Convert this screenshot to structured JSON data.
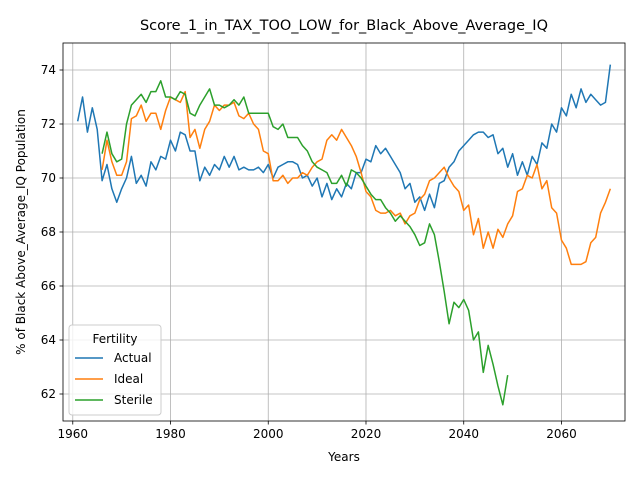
{
  "chart_data": {
    "type": "line",
    "title": "Score_1_in_TAX_TOO_LOW_for_Black_Above_Average_IQ",
    "xlabel": "Years",
    "ylabel": "% of Black Above_Average_IQ Population",
    "xlim": [
      1958,
      2073
    ],
    "ylim": [
      61.0,
      75.0
    ],
    "xticks": [
      1960,
      1980,
      2000,
      2020,
      2040,
      2060
    ],
    "yticks": [
      62,
      64,
      66,
      68,
      70,
      72,
      74
    ],
    "grid": true,
    "legend": {
      "title": "Fertility",
      "placement": "lower-left"
    },
    "series": [
      {
        "name": "Actual",
        "color": "#1f77b4",
        "x": [
          1961,
          1962,
          1963,
          1964,
          1965,
          1966,
          1967,
          1968,
          1969,
          1970,
          1971,
          1972,
          1973,
          1974,
          1975,
          1976,
          1977,
          1978,
          1979,
          1980,
          1981,
          1982,
          1983,
          1984,
          1985,
          1986,
          1987,
          1988,
          1989,
          1990,
          1991,
          1992,
          1993,
          1994,
          1995,
          1996,
          1997,
          1998,
          1999,
          2000,
          2001,
          2002,
          2003,
          2004,
          2005,
          2006,
          2007,
          2008,
          2009,
          2010,
          2011,
          2012,
          2013,
          2014,
          2015,
          2016,
          2017,
          2018,
          2019,
          2020,
          2021,
          2022,
          2023,
          2024,
          2025,
          2026,
          2027,
          2028,
          2029,
          2030,
          2031,
          2032,
          2033,
          2034,
          2035,
          2036,
          2037,
          2038,
          2039,
          2040,
          2041,
          2042,
          2043,
          2044,
          2045,
          2046,
          2047,
          2048,
          2049,
          2050,
          2051,
          2052,
          2053,
          2054,
          2055,
          2056,
          2057,
          2058,
          2059,
          2060,
          2061,
          2062,
          2063,
          2064,
          2065,
          2066,
          2067,
          2068,
          2069,
          2070
        ],
        "values": [
          72.1,
          73.0,
          71.7,
          72.6,
          71.8,
          69.9,
          70.5,
          69.6,
          69.1,
          69.6,
          70.0,
          70.8,
          69.8,
          70.1,
          69.7,
          70.6,
          70.3,
          70.8,
          70.7,
          71.4,
          71.0,
          71.7,
          71.6,
          71.0,
          71.0,
          69.9,
          70.4,
          70.1,
          70.5,
          70.3,
          70.8,
          70.4,
          70.8,
          70.3,
          70.4,
          70.3,
          70.3,
          70.4,
          70.2,
          70.5,
          70.0,
          70.4,
          70.5,
          70.6,
          70.6,
          70.5,
          70.0,
          70.1,
          69.7,
          70.0,
          69.3,
          69.8,
          69.2,
          69.6,
          69.3,
          69.8,
          69.6,
          70.2,
          70.2,
          70.7,
          70.6,
          71.2,
          70.9,
          71.1,
          70.8,
          70.5,
          70.2,
          69.6,
          69.8,
          69.1,
          69.3,
          68.8,
          69.4,
          68.9,
          69.8,
          69.9,
          70.4,
          70.6,
          71.0,
          71.2,
          71.4,
          71.6,
          71.7,
          71.7,
          71.5,
          71.6,
          70.9,
          71.1,
          70.4,
          70.9,
          70.1,
          70.6,
          70.1,
          70.8,
          70.5,
          71.3,
          71.1,
          72.0,
          71.7,
          72.6,
          72.3,
          73.1,
          72.6,
          73.3,
          72.8,
          73.1,
          72.9,
          72.7,
          72.8,
          74.2
        ]
      },
      {
        "name": "Ideal",
        "color": "#ff7f0e",
        "x": [
          1966,
          1967,
          1968,
          1969,
          1970,
          1971,
          1972,
          1973,
          1974,
          1975,
          1976,
          1977,
          1978,
          1979,
          1980,
          1981,
          1982,
          1983,
          1984,
          1985,
          1986,
          1987,
          1988,
          1989,
          1990,
          1991,
          1992,
          1993,
          1994,
          1995,
          1996,
          1997,
          1998,
          1999,
          2000,
          2001,
          2002,
          2003,
          2004,
          2005,
          2006,
          2007,
          2008,
          2009,
          2010,
          2011,
          2012,
          2013,
          2014,
          2015,
          2016,
          2017,
          2018,
          2019,
          2020,
          2021,
          2022,
          2023,
          2024,
          2025,
          2026,
          2027,
          2028,
          2029,
          2030,
          2031,
          2032,
          2033,
          2034,
          2035,
          2036,
          2037,
          2038,
          2039,
          2040,
          2041,
          2042,
          2043,
          2044,
          2045,
          2046,
          2047,
          2048,
          2049,
          2050,
          2051,
          2052,
          2053,
          2054,
          2055,
          2056,
          2057,
          2058,
          2059,
          2060,
          2061,
          2062,
          2063,
          2064,
          2065,
          2066,
          2067,
          2068,
          2069,
          2070
        ],
        "values": [
          70.3,
          71.4,
          70.6,
          70.1,
          70.1,
          70.6,
          72.2,
          72.3,
          72.7,
          72.1,
          72.4,
          72.4,
          71.8,
          72.5,
          73.0,
          72.9,
          72.8,
          73.2,
          71.5,
          71.8,
          71.1,
          71.8,
          72.1,
          72.7,
          72.5,
          72.7,
          72.7,
          72.8,
          72.3,
          72.2,
          72.4,
          72.0,
          71.8,
          71.0,
          70.9,
          69.9,
          69.9,
          70.1,
          69.8,
          70.0,
          70.0,
          70.2,
          70.1,
          70.4,
          70.6,
          70.7,
          71.4,
          71.6,
          71.4,
          71.8,
          71.5,
          71.2,
          70.8,
          70.2,
          69.5,
          69.3,
          68.8,
          68.7,
          68.7,
          68.8,
          68.6,
          68.7,
          68.3,
          68.6,
          68.7,
          69.2,
          69.4,
          69.9,
          70.0,
          70.2,
          70.4,
          70.0,
          69.7,
          69.5,
          68.8,
          69.0,
          67.9,
          68.5,
          67.4,
          68.0,
          67.4,
          68.1,
          67.8,
          68.3,
          68.6,
          69.5,
          69.6,
          70.1,
          70.0,
          70.5,
          69.6,
          69.9,
          68.9,
          68.7,
          67.7,
          67.4,
          66.8,
          66.8,
          66.8,
          66.9,
          67.6,
          67.8,
          68.7,
          69.1,
          69.6
        ]
      },
      {
        "name": "Sterile",
        "color": "#2ca02c",
        "x": [
          1966,
          1967,
          1968,
          1969,
          1970,
          1971,
          1972,
          1973,
          1974,
          1975,
          1976,
          1977,
          1978,
          1979,
          1980,
          1981,
          1982,
          1983,
          1984,
          1985,
          1986,
          1987,
          1988,
          1989,
          1990,
          1991,
          1992,
          1993,
          1994,
          1995,
          1996,
          1997,
          1998,
          1999,
          2000,
          2001,
          2002,
          2003,
          2004,
          2005,
          2006,
          2007,
          2008,
          2009,
          2010,
          2011,
          2012,
          2013,
          2014,
          2015,
          2016,
          2017,
          2018,
          2019,
          2020,
          2021,
          2022,
          2023,
          2024,
          2025,
          2026,
          2027,
          2028,
          2029,
          2030,
          2031,
          2032,
          2033,
          2034,
          2035,
          2036,
          2037,
          2038,
          2039,
          2040,
          2041,
          2042,
          2043,
          2044,
          2045,
          2046,
          2047,
          2048,
          2049,
          2050
        ],
        "values": [
          70.9,
          71.7,
          70.9,
          70.6,
          70.7,
          72.0,
          72.7,
          72.9,
          73.1,
          72.8,
          73.2,
          73.2,
          73.6,
          73.0,
          73.0,
          72.9,
          73.2,
          73.1,
          72.4,
          72.3,
          72.7,
          73.0,
          73.3,
          72.7,
          72.7,
          72.6,
          72.7,
          72.9,
          72.7,
          73.0,
          72.4,
          72.4,
          72.4,
          72.4,
          72.4,
          71.9,
          71.8,
          72.0,
          71.5,
          71.5,
          71.5,
          71.2,
          71.0,
          70.6,
          70.4,
          70.3,
          70.2,
          69.8,
          69.8,
          70.1,
          69.7,
          70.3,
          70.2,
          70.0,
          69.7,
          69.4,
          69.2,
          69.2,
          68.9,
          68.7,
          68.4,
          68.6,
          68.4,
          68.2,
          67.9,
          67.5,
          67.6,
          68.3,
          67.9,
          66.9,
          65.8,
          64.6,
          65.4,
          65.2,
          65.5,
          65.1,
          64.0,
          64.3,
          62.8,
          63.8,
          63.1,
          62.3,
          61.6,
          62.7,
          null
        ]
      }
    ]
  }
}
